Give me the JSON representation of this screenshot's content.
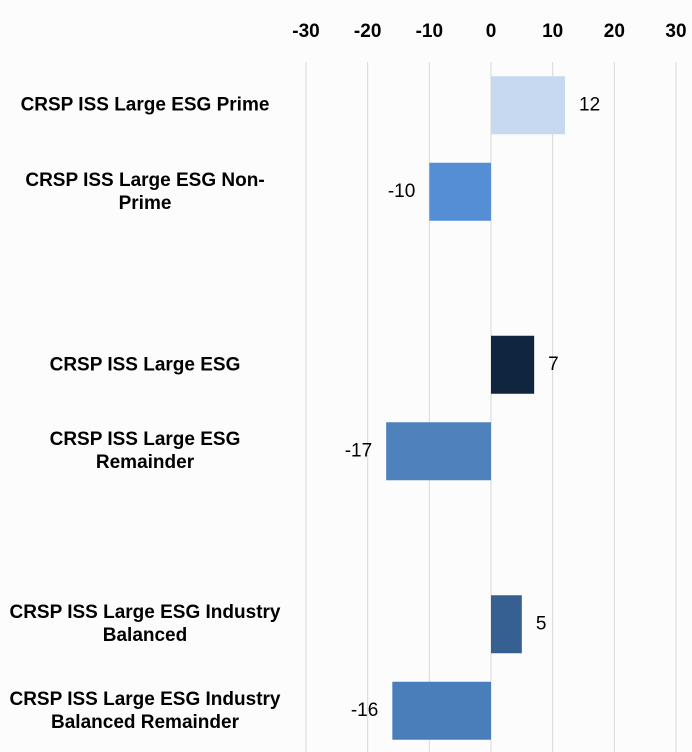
{
  "chart_data": {
    "type": "hbar",
    "categories": [
      "CRSP ISS Large ESG Prime",
      "CRSP ISS Large ESG Non-Prime",
      null,
      "CRSP ISS Large ESG",
      "CRSP ISS Large ESG Remainder",
      null,
      "CRSP ISS Large ESG Industry Balanced",
      "CRSP ISS Large ESG Industry Balanced Remainder"
    ],
    "values": [
      12,
      -10,
      null,
      7,
      -17,
      null,
      5,
      -16
    ],
    "colors": [
      "#c6d9f1",
      "#558ed5",
      null,
      "#10253f",
      "#4f81bd",
      null,
      "#376092",
      "#4a7ebb"
    ],
    "xlim": [
      -30,
      30
    ],
    "xticks": [
      -30,
      -20,
      -10,
      0,
      10,
      20,
      30
    ],
    "grid": true
  }
}
